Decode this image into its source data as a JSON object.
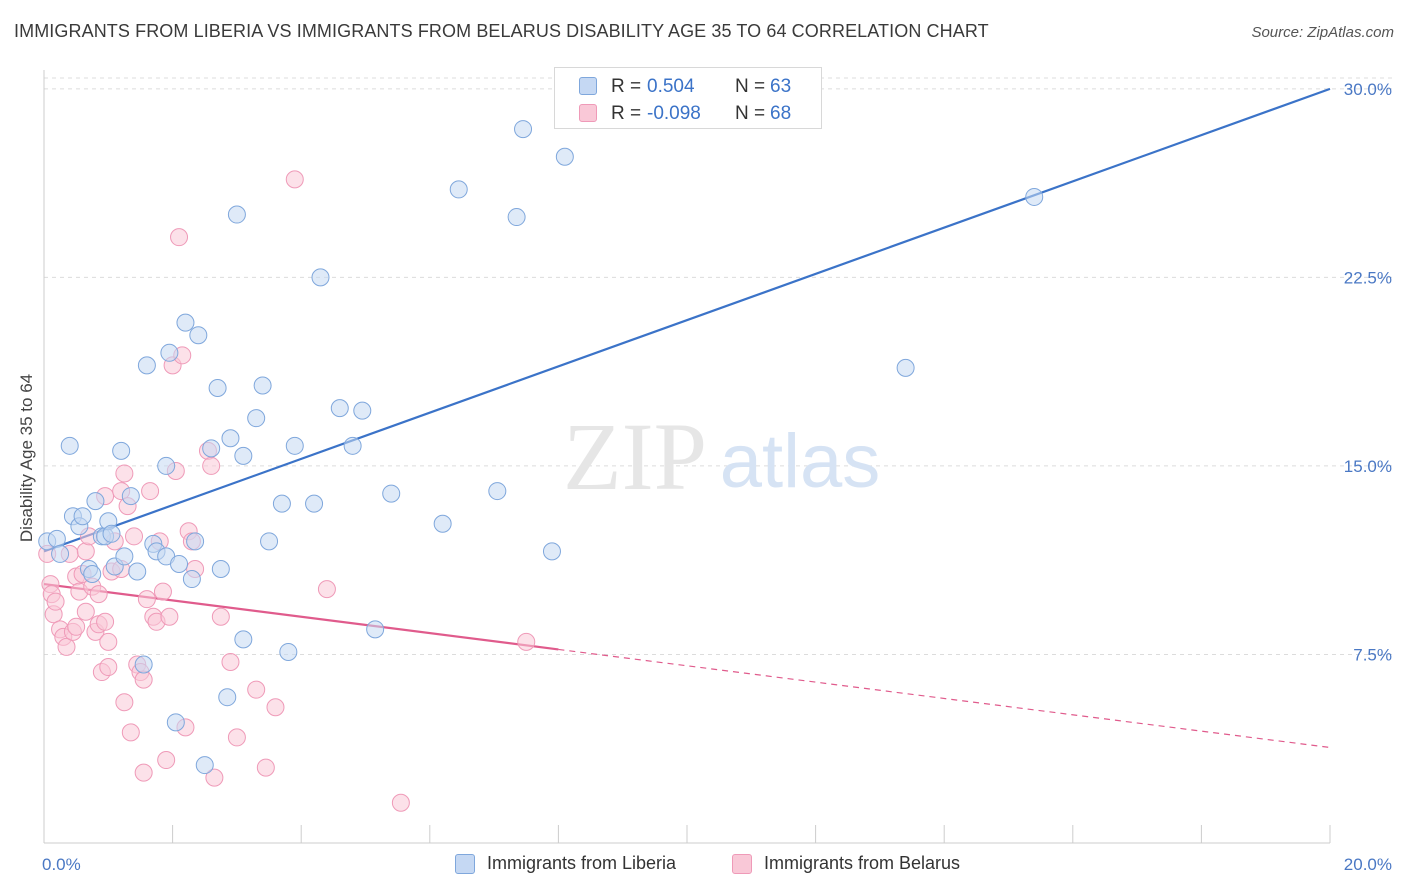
{
  "header": {
    "title": "IMMIGRANTS FROM LIBERIA VS IMMIGRANTS FROM BELARUS DISABILITY AGE 35 TO 64 CORRELATION CHART",
    "source": "Source: ZipAtlas.com"
  },
  "watermark": {
    "zip": "ZIP",
    "atlas": "atlas"
  },
  "colors": {
    "blue": "#3b73c8",
    "blue_fill": "#c5d8f3",
    "blue_stroke": "#7fa7dc",
    "pink": "#e05b8c",
    "pink_fill": "#f9c8d7",
    "pink_stroke": "#ef9ab8",
    "axis_text": "#4a78c4",
    "grid": "#dcdcdc"
  },
  "legend_top": {
    "rows": [
      {
        "r_label": "R =",
        "r_value": "0.504",
        "n_label": "N =",
        "n_value": "63"
      },
      {
        "r_label": "R =",
        "r_value": "-0.098",
        "n_label": "N =",
        "n_value": "68"
      }
    ]
  },
  "legend_bottom": {
    "items": [
      {
        "label": "Immigrants from Liberia"
      },
      {
        "label": "Immigrants from Belarus"
      }
    ]
  },
  "chart_data": {
    "type": "scatter",
    "title": "IMMIGRANTS FROM LIBERIA VS IMMIGRANTS FROM BELARUS DISABILITY AGE 35 TO 64 CORRELATION CHART",
    "xlabel": "",
    "ylabel": "Disability Age 35 to 64",
    "xlim": [
      0,
      20
    ],
    "ylim": [
      0,
      30.75
    ],
    "x_tick_labels": [
      "0.0%",
      "20.0%"
    ],
    "y_ticks": [
      7.5,
      15.0,
      22.5,
      30.0
    ],
    "y_tick_labels": [
      "7.5%",
      "15.0%",
      "22.5%",
      "30.0%"
    ],
    "grid": true,
    "legend_position": "bottom",
    "series": [
      {
        "name": "Immigrants from Liberia",
        "R": 0.504,
        "N": 63,
        "trend": {
          "x": [
            0,
            20
          ],
          "y": [
            11.6,
            30.0
          ],
          "dashed_from_x": null
        },
        "points": [
          [
            0.05,
            12.0
          ],
          [
            0.2,
            12.1
          ],
          [
            0.25,
            11.5
          ],
          [
            0.4,
            15.8
          ],
          [
            0.45,
            13.0
          ],
          [
            0.55,
            12.6
          ],
          [
            0.6,
            13.0
          ],
          [
            0.7,
            10.9
          ],
          [
            0.75,
            10.7
          ],
          [
            0.8,
            13.6
          ],
          [
            0.9,
            12.2
          ],
          [
            0.95,
            12.2
          ],
          [
            1.0,
            12.8
          ],
          [
            1.05,
            12.3
          ],
          [
            1.1,
            11.0
          ],
          [
            1.2,
            15.6
          ],
          [
            1.25,
            11.4
          ],
          [
            1.35,
            13.8
          ],
          [
            1.45,
            10.8
          ],
          [
            1.55,
            7.1
          ],
          [
            1.6,
            19.0
          ],
          [
            1.7,
            11.9
          ],
          [
            1.75,
            11.6
          ],
          [
            1.9,
            11.4
          ],
          [
            1.9,
            15.0
          ],
          [
            1.95,
            19.5
          ],
          [
            2.05,
            4.8
          ],
          [
            2.1,
            11.1
          ],
          [
            2.2,
            20.7
          ],
          [
            2.3,
            10.5
          ],
          [
            2.35,
            12.0
          ],
          [
            2.4,
            20.2
          ],
          [
            2.5,
            3.1
          ],
          [
            2.6,
            15.7
          ],
          [
            2.7,
            18.1
          ],
          [
            2.75,
            10.9
          ],
          [
            2.85,
            5.8
          ],
          [
            2.9,
            16.1
          ],
          [
            3.0,
            25.0
          ],
          [
            3.1,
            15.4
          ],
          [
            3.1,
            8.1
          ],
          [
            3.3,
            16.9
          ],
          [
            3.4,
            18.2
          ],
          [
            3.5,
            12.0
          ],
          [
            3.7,
            13.5
          ],
          [
            3.8,
            7.6
          ],
          [
            3.9,
            15.8
          ],
          [
            4.2,
            13.5
          ],
          [
            4.3,
            22.5
          ],
          [
            4.6,
            17.3
          ],
          [
            4.8,
            15.8
          ],
          [
            4.95,
            17.2
          ],
          [
            5.15,
            8.5
          ],
          [
            5.4,
            13.9
          ],
          [
            6.2,
            12.7
          ],
          [
            6.45,
            26.0
          ],
          [
            7.05,
            14.0
          ],
          [
            7.35,
            24.9
          ],
          [
            7.45,
            28.4
          ],
          [
            7.9,
            11.6
          ],
          [
            8.1,
            27.3
          ],
          [
            13.4,
            18.9
          ],
          [
            15.4,
            25.7
          ]
        ]
      },
      {
        "name": "Immigrants from Belarus",
        "R": -0.098,
        "N": 68,
        "trend": {
          "x": [
            0,
            20
          ],
          "y": [
            10.3,
            3.8
          ],
          "dashed_from_x": 8.0
        },
        "points": [
          [
            0.05,
            11.5
          ],
          [
            0.1,
            10.3
          ],
          [
            0.12,
            9.9
          ],
          [
            0.15,
            9.1
          ],
          [
            0.18,
            9.6
          ],
          [
            0.25,
            8.5
          ],
          [
            0.3,
            8.2
          ],
          [
            0.35,
            7.8
          ],
          [
            0.4,
            11.5
          ],
          [
            0.45,
            8.4
          ],
          [
            0.5,
            8.6
          ],
          [
            0.5,
            10.6
          ],
          [
            0.55,
            10.0
          ],
          [
            0.6,
            10.7
          ],
          [
            0.65,
            11.6
          ],
          [
            0.65,
            9.2
          ],
          [
            0.7,
            12.2
          ],
          [
            0.75,
            10.2
          ],
          [
            0.8,
            8.4
          ],
          [
            0.85,
            9.9
          ],
          [
            0.85,
            8.7
          ],
          [
            0.9,
            6.8
          ],
          [
            0.95,
            13.8
          ],
          [
            0.95,
            8.8
          ],
          [
            1.0,
            8.0
          ],
          [
            1.0,
            7.0
          ],
          [
            1.05,
            10.8
          ],
          [
            1.1,
            12.0
          ],
          [
            1.2,
            14.0
          ],
          [
            1.2,
            10.9
          ],
          [
            1.25,
            14.7
          ],
          [
            1.25,
            5.6
          ],
          [
            1.3,
            13.4
          ],
          [
            1.35,
            4.4
          ],
          [
            1.4,
            12.2
          ],
          [
            1.45,
            7.1
          ],
          [
            1.5,
            6.8
          ],
          [
            1.55,
            6.5
          ],
          [
            1.55,
            2.8
          ],
          [
            1.6,
            9.7
          ],
          [
            1.65,
            14.0
          ],
          [
            1.7,
            9.0
          ],
          [
            1.75,
            8.8
          ],
          [
            1.8,
            12.0
          ],
          [
            1.85,
            10.0
          ],
          [
            1.9,
            3.3
          ],
          [
            1.95,
            9.0
          ],
          [
            2.0,
            19.0
          ],
          [
            2.05,
            14.8
          ],
          [
            2.1,
            24.1
          ],
          [
            2.15,
            19.4
          ],
          [
            2.2,
            4.6
          ],
          [
            2.25,
            12.4
          ],
          [
            2.3,
            12.0
          ],
          [
            2.35,
            10.9
          ],
          [
            2.55,
            15.6
          ],
          [
            2.6,
            15.0
          ],
          [
            2.65,
            2.6
          ],
          [
            2.75,
            9.0
          ],
          [
            2.9,
            7.2
          ],
          [
            3.0,
            4.2
          ],
          [
            3.3,
            6.1
          ],
          [
            3.45,
            3.0
          ],
          [
            3.6,
            5.4
          ],
          [
            3.9,
            26.4
          ],
          [
            4.4,
            10.1
          ],
          [
            5.55,
            1.6
          ],
          [
            7.5,
            8.0
          ]
        ]
      }
    ]
  }
}
